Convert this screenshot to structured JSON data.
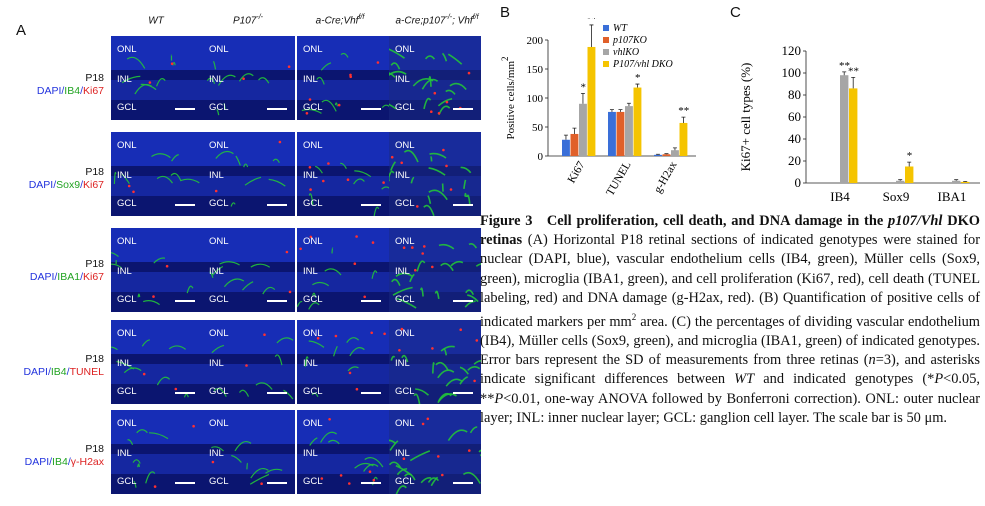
{
  "panels": {
    "a": "A",
    "b": "B",
    "c": "C"
  },
  "col_headers": [
    {
      "base": "WT",
      "sup": ""
    },
    {
      "base": "P107",
      "sup": "-/-"
    },
    {
      "base": "a-Cre;Vhf",
      "sup": "f/f"
    },
    {
      "base": "a-Cre;p107",
      "sup": "-/-",
      "mid": "; Vhf",
      "sup2": "f/f"
    }
  ],
  "rows": [
    {
      "p18": "P18",
      "dapi": "DAPI/",
      "green": "IB4",
      "sep": "/",
      "red": "Ki67"
    },
    {
      "p18": "P18",
      "dapi": "DAPI/",
      "green": "Sox9",
      "sep": "/",
      "red": "Ki67"
    },
    {
      "p18": "P18",
      "dapi": "DAPI/",
      "green": "IBA1",
      "sep": "/",
      "red": "Ki67"
    },
    {
      "p18": "P18",
      "dapi": "DAPI/",
      "green": "IB4",
      "sep": "/",
      "red": "TUNEL"
    },
    {
      "p18": "P18",
      "dapi": "DAPI/",
      "green": "IB4",
      "sep": "/",
      "red": "γ-H2ax"
    }
  ],
  "layer_labels": {
    "onl": "ONL",
    "inl": "INL",
    "gcl": "GCL"
  },
  "colors": {
    "wt": "#3a6fd8",
    "p107ko": "#e0602a",
    "vhlko": "#a6a6a6",
    "dko": "#f5c400",
    "dapi": "#0d1a8a",
    "green": "#22c33a",
    "red": "#ff3030"
  },
  "chart_data": [
    {
      "type": "bar",
      "panel": "B",
      "categories": [
        "Ki67",
        "TUNEL",
        "g-H2ax"
      ],
      "series": [
        {
          "name": "WT",
          "values": [
            28,
            76,
            2
          ],
          "err": [
            8,
            4,
            1
          ]
        },
        {
          "name": "p107KO",
          "values": [
            38,
            76,
            3
          ],
          "err": [
            10,
            4,
            1
          ]
        },
        {
          "name": "vhlKO",
          "values": [
            90,
            86,
            10
          ],
          "err": [
            18,
            5,
            4
          ]
        },
        {
          "name": "P107/vhl DKO",
          "values": [
            188,
            118,
            57
          ],
          "err": [
            38,
            6,
            10
          ]
        }
      ],
      "sig": [
        [
          "",
          "",
          "*",
          "**"
        ],
        [
          "",
          "",
          "",
          "*"
        ],
        [
          "",
          "",
          "",
          "**"
        ]
      ],
      "ylabel": "Positive cells/mm",
      "ylabel_sup": "2",
      "ylim": [
        0,
        200
      ],
      "yticks": [
        "0",
        "50",
        "100",
        "150",
        "200"
      ],
      "legend_position": "top-right"
    },
    {
      "type": "bar",
      "panel": "C",
      "categories": [
        "IB4",
        "Sox9",
        "IBA1"
      ],
      "series": [
        {
          "name": "WT",
          "values": [
            0,
            0,
            0
          ],
          "err": [
            0,
            0,
            0
          ]
        },
        {
          "name": "p107KO",
          "values": [
            0,
            0,
            0
          ],
          "err": [
            0,
            0,
            0
          ]
        },
        {
          "name": "vhlKO",
          "values": [
            98,
            2,
            2
          ],
          "err": [
            3,
            1,
            1
          ]
        },
        {
          "name": "P107/vhl DKO",
          "values": [
            86,
            15,
            1
          ],
          "err": [
            10,
            4,
            0.5
          ]
        }
      ],
      "sig": [
        [
          "",
          "",
          "**",
          "**"
        ],
        [
          "",
          "",
          "",
          "*"
        ],
        [
          "",
          "",
          "",
          ""
        ]
      ],
      "ylabel": "Ki67+ cell types  (%)",
      "ylim": [
        0,
        120
      ],
      "yticks": [
        "0",
        "20",
        "40",
        "60",
        "80",
        "100",
        "120"
      ]
    }
  ],
  "caption": {
    "fig": "Figure 3",
    "title_a": "Cell proliferation, cell death, and DNA damage in the ",
    "title_it": "p107/Vhl",
    "title_b": " DKO retinas",
    "t1": " (A) Horizontal P18 retinal sections of indicated genotypes were stained for nuclear (DAPI, blue), vascular endothelium cells (IB4, green), Müller cells (Sox9, green), microglia (IBA1, green), and cell proliferation (Ki67, red), cell death (TUNEL labeling, red) and DNA damage (g-H2ax, red). (B) Quantification of positive cells of indicated markers per mm",
    "t1_sup": "2",
    "t2": " area. (C) the percentages of dividing vascular endothelium (IB4), Müller cells (Sox9, green), and microglia (IBA1, green) of indicated genotypes. Error bars represent the SD of measurements from three retinas (",
    "t2_it": "n",
    "t3": "=3), and asterisks indicate significant differences between ",
    "t3_it": "WT",
    "t4": " and indicated genotypes (*",
    "t4_it1": "P",
    "t5": "<0.05, **",
    "t5_it": "P",
    "t6": "<0.01, one-way ANOVA followed by Bonferroni correction). ONL: outer nuclear layer; INL: inner nuclear layer; GCL: ganglion cell layer. The scale bar is 50 μm."
  }
}
